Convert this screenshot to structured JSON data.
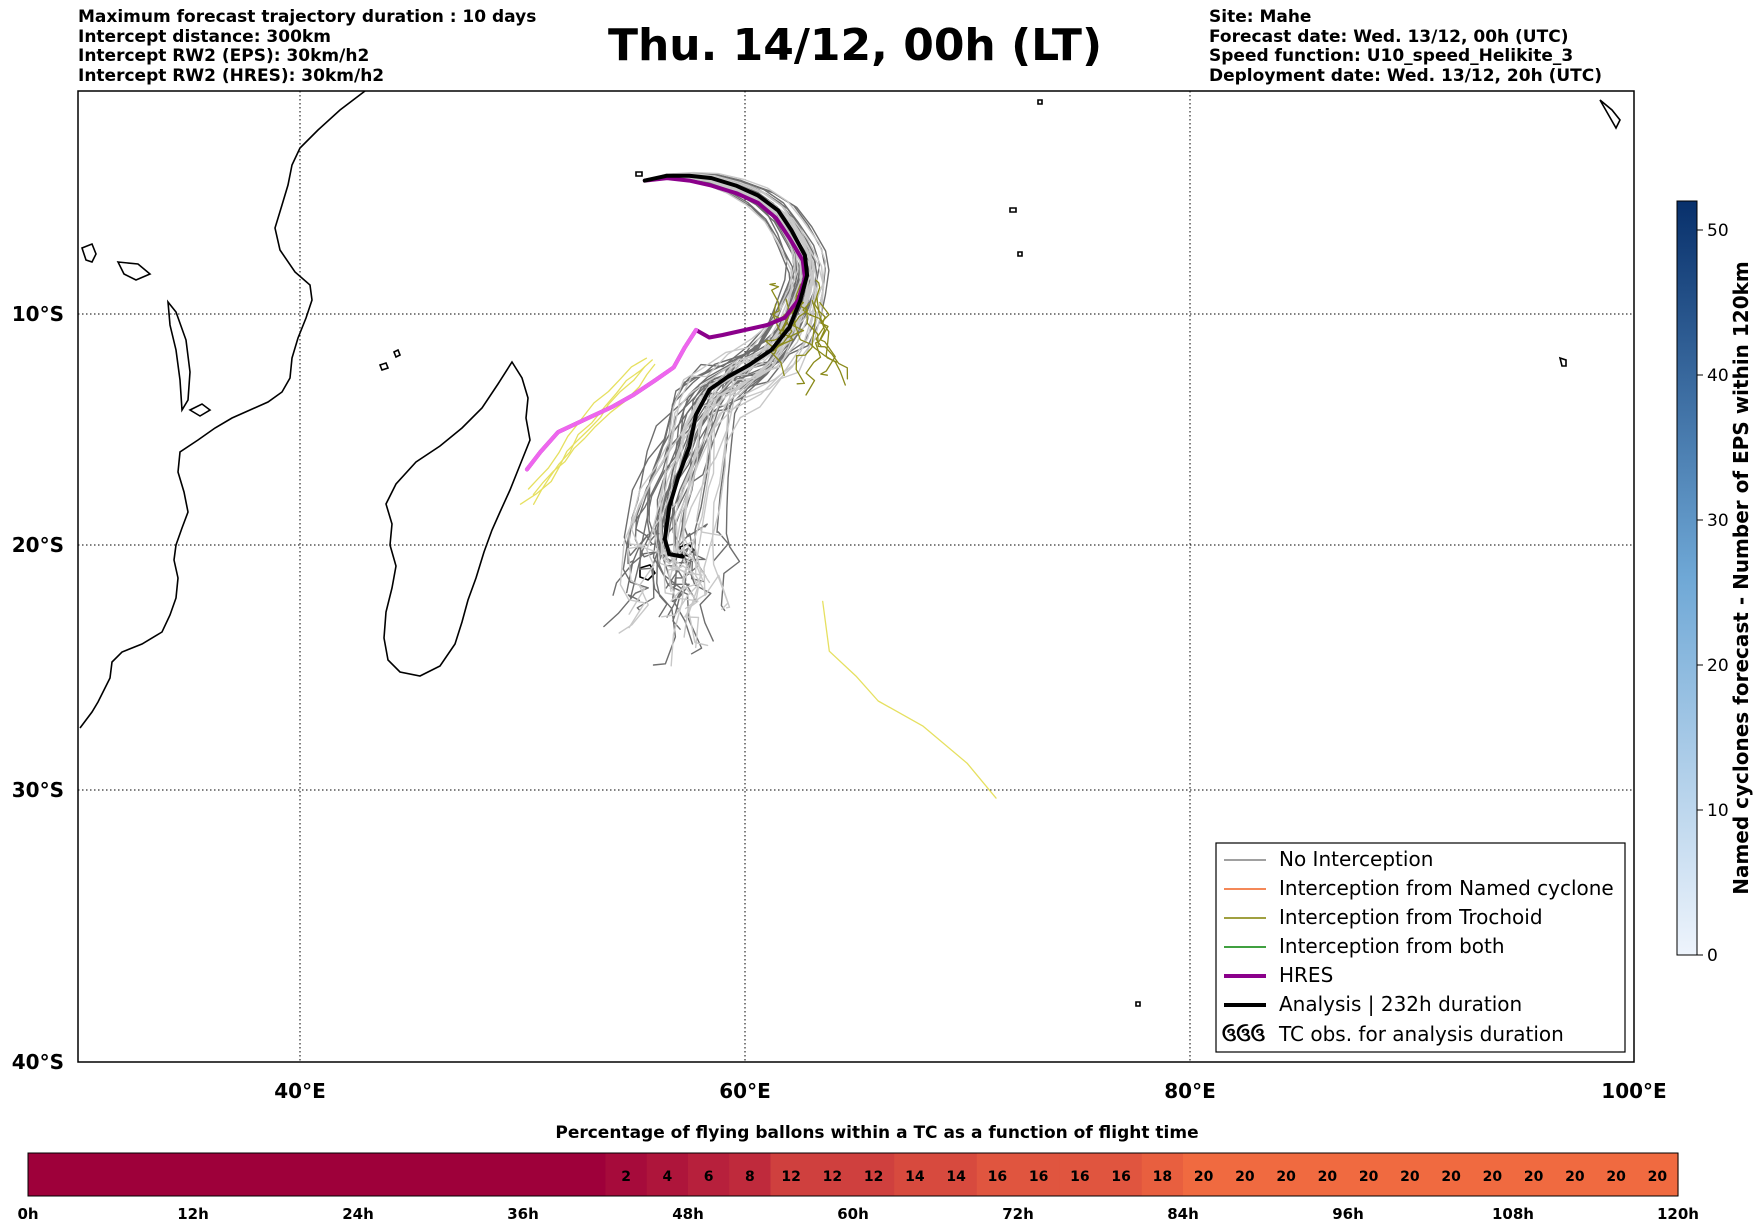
{
  "header": {
    "left_lines": [
      "Maximum forecast trajectory duration : 10 days",
      "Intercept distance: 300km",
      "Intercept RW2 (EPS):  30km/h2",
      "Intercept RW2 (HRES): 30km/h2"
    ],
    "title": "Thu. 14/12, 00h (LT)",
    "right_lines": [
      "Site: Mahe",
      "Forecast date: Wed. 13/12, 00h (UTC)",
      "Speed function: U10_speed_Helikite_3",
      "Deployment date: Wed. 13/12, 20h (UTC)"
    ]
  },
  "legend": {
    "items": [
      {
        "label": "No Interception",
        "color": "#808080",
        "style": "thin"
      },
      {
        "label": "Interception from Named cyclone",
        "color": "#f06020",
        "style": "thin"
      },
      {
        "label": "Interception from Trochoid",
        "color": "#808000",
        "style": "thin"
      },
      {
        "label": "Interception from both",
        "color": "#008000",
        "style": "thin"
      },
      {
        "label": "HRES",
        "color": "#8b008b",
        "style": "thick"
      },
      {
        "label": "Analysis | 232h duration",
        "color": "#000000",
        "style": "thick"
      },
      {
        "label": "TC obs. for analysis duration",
        "color": "#000000",
        "style": "symbol",
        "symbol": "ઉઉઉ"
      }
    ]
  },
  "colorbar_right": {
    "label": "Named cyclones forecast - Number of EPS within 120km",
    "ticks": [
      "0",
      "10",
      "20",
      "30",
      "40",
      "50"
    ],
    "range": [
      0,
      52
    ],
    "cmap_light": "#e8f1fb",
    "cmap_dark": "#0b3b7a"
  },
  "bottom_bar": {
    "title": "Percentage of flying ballons within a TC as a function of flight time",
    "time_labels": [
      "0h",
      "12h",
      "24h",
      "36h",
      "48h",
      "60h",
      "72h",
      "84h",
      "96h",
      "108h",
      "120h"
    ],
    "cells": [
      {
        "value": 0,
        "label": ""
      },
      {
        "value": 0,
        "label": ""
      },
      {
        "value": 0,
        "label": ""
      },
      {
        "value": 0,
        "label": ""
      },
      {
        "value": 0,
        "label": ""
      },
      {
        "value": 0,
        "label": ""
      },
      {
        "value": 0,
        "label": ""
      },
      {
        "value": 0,
        "label": ""
      },
      {
        "value": 0,
        "label": ""
      },
      {
        "value": 0,
        "label": ""
      },
      {
        "value": 0,
        "label": ""
      },
      {
        "value": 0,
        "label": ""
      },
      {
        "value": 0,
        "label": ""
      },
      {
        "value": 0,
        "label": ""
      },
      {
        "value": 2,
        "label": "2"
      },
      {
        "value": 4,
        "label": "4"
      },
      {
        "value": 6,
        "label": "6"
      },
      {
        "value": 8,
        "label": "8"
      },
      {
        "value": 12,
        "label": "12"
      },
      {
        "value": 12,
        "label": "12"
      },
      {
        "value": 12,
        "label": "12"
      },
      {
        "value": 14,
        "label": "14"
      },
      {
        "value": 14,
        "label": "14"
      },
      {
        "value": 16,
        "label": "16"
      },
      {
        "value": 16,
        "label": "16"
      },
      {
        "value": 16,
        "label": "16"
      },
      {
        "value": 16,
        "label": "16"
      },
      {
        "value": 18,
        "label": "18"
      },
      {
        "value": 20,
        "label": "20"
      },
      {
        "value": 20,
        "label": "20"
      },
      {
        "value": 20,
        "label": "20"
      },
      {
        "value": 20,
        "label": "20"
      },
      {
        "value": 20,
        "label": "20"
      },
      {
        "value": 20,
        "label": "20"
      },
      {
        "value": 20,
        "label": "20"
      },
      {
        "value": 20,
        "label": "20"
      },
      {
        "value": 20,
        "label": "20"
      },
      {
        "value": 20,
        "label": "20"
      },
      {
        "value": 20,
        "label": "20"
      },
      {
        "value": 20,
        "label": "20"
      }
    ]
  },
  "chart_data": {
    "type": "line",
    "title": "Thu. 14/12, 00h (LT)",
    "x_axis": {
      "range": [
        30,
        100
      ],
      "ticks": [
        40,
        60,
        80,
        100
      ],
      "tick_labels": [
        "40°E",
        "60°E",
        "80°E",
        "100°E"
      ]
    },
    "y_axis": {
      "range": [
        -40,
        -1
      ],
      "ticks": [
        -10,
        -20,
        -30,
        -40
      ],
      "tick_labels": [
        "10°S",
        "20°S",
        "30°S",
        "40°S"
      ]
    },
    "grid": "dotted",
    "legend_position": "lower-right",
    "series": [
      {
        "name": "HRES",
        "color": "#8b008b",
        "width": 4,
        "points": [
          [
            55.5,
            -4.6
          ],
          [
            56.5,
            -4.5
          ],
          [
            57.5,
            -4.6
          ],
          [
            58.5,
            -4.8
          ],
          [
            59.6,
            -5.1
          ],
          [
            60.6,
            -5.5
          ],
          [
            61.4,
            -6.1
          ],
          [
            62.0,
            -6.9
          ],
          [
            62.6,
            -7.8
          ],
          [
            62.7,
            -8.5
          ],
          [
            62.4,
            -9.4
          ],
          [
            61.8,
            -10.1
          ],
          [
            61.0,
            -10.4
          ],
          [
            60.0,
            -10.6
          ],
          [
            59.0,
            -10.8
          ],
          [
            58.4,
            -10.9
          ],
          [
            58.0,
            -10.7
          ],
          [
            57.8,
            -10.6
          ],
          [
            57.3,
            -11.3
          ],
          [
            56.8,
            -12.1
          ],
          [
            56.0,
            -12.6
          ],
          [
            55.0,
            -13.2
          ],
          [
            54.0,
            -13.7
          ],
          [
            52.8,
            -14.2
          ],
          [
            51.6,
            -14.7
          ],
          [
            50.8,
            -15.5
          ],
          [
            50.2,
            -16.2
          ]
        ]
      },
      {
        "name": "HRES (continued)",
        "color": "#ee66ee",
        "width": 4,
        "points": [
          [
            57.8,
            -10.6
          ],
          [
            57.3,
            -11.3
          ],
          [
            56.8,
            -12.1
          ],
          [
            56.0,
            -12.6
          ],
          [
            55.0,
            -13.2
          ],
          [
            54.0,
            -13.7
          ],
          [
            52.8,
            -14.2
          ],
          [
            51.6,
            -14.7
          ],
          [
            50.8,
            -15.5
          ],
          [
            50.2,
            -16.2
          ]
        ]
      },
      {
        "name": "Analysis | 232h duration",
        "color": "#000000",
        "width": 4,
        "points": [
          [
            55.5,
            -4.6
          ],
          [
            56.5,
            -4.4
          ],
          [
            57.5,
            -4.4
          ],
          [
            58.5,
            -4.5
          ],
          [
            59.6,
            -4.8
          ],
          [
            60.6,
            -5.2
          ],
          [
            61.5,
            -5.8
          ],
          [
            62.1,
            -6.6
          ],
          [
            62.7,
            -7.6
          ],
          [
            62.8,
            -8.4
          ],
          [
            62.5,
            -9.4
          ],
          [
            62.0,
            -10.5
          ],
          [
            61.2,
            -11.4
          ],
          [
            60.2,
            -12.0
          ],
          [
            59.2,
            -12.5
          ],
          [
            58.4,
            -13.0
          ],
          [
            57.8,
            -14.0
          ],
          [
            57.5,
            -15.3
          ],
          [
            57.0,
            -16.5
          ],
          [
            56.6,
            -17.7
          ],
          [
            56.4,
            -19.0
          ],
          [
            56.6,
            -19.6
          ],
          [
            57.2,
            -19.7
          ]
        ]
      }
    ],
    "ensemble_no_interception_count": 50,
    "ensemble_trochoid_count": 12,
    "yellow_outlier_track": [
      [
        63.5,
        -21.5
      ],
      [
        63.8,
        -23.5
      ],
      [
        65.0,
        -24.5
      ],
      [
        66.0,
        -25.5
      ],
      [
        68.0,
        -26.5
      ],
      [
        70.0,
        -28.0
      ],
      [
        71.3,
        -29.4
      ]
    ]
  }
}
